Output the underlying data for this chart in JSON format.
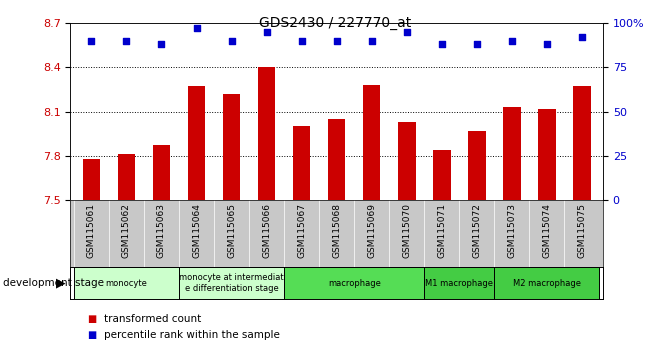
{
  "title": "GDS2430 / 227770_at",
  "samples": [
    "GSM115061",
    "GSM115062",
    "GSM115063",
    "GSM115064",
    "GSM115065",
    "GSM115066",
    "GSM115067",
    "GSM115068",
    "GSM115069",
    "GSM115070",
    "GSM115071",
    "GSM115072",
    "GSM115073",
    "GSM115074",
    "GSM115075"
  ],
  "bar_values": [
    7.78,
    7.81,
    7.87,
    8.27,
    8.22,
    8.4,
    8.0,
    8.05,
    8.28,
    8.03,
    7.84,
    7.97,
    8.13,
    8.12,
    8.27
  ],
  "percentile_values": [
    90,
    90,
    88,
    97,
    90,
    95,
    90,
    90,
    90,
    95,
    88,
    88,
    90,
    88,
    92
  ],
  "ylim_left": [
    7.5,
    8.7
  ],
  "ylim_right": [
    0,
    100
  ],
  "yticks_left": [
    7.5,
    7.8,
    8.1,
    8.4,
    8.7
  ],
  "yticks_right": [
    0,
    25,
    50,
    75,
    100
  ],
  "ytick_labels_right": [
    "0",
    "25",
    "50",
    "75",
    "100%"
  ],
  "bar_color": "#cc0000",
  "percentile_color": "#0000cc",
  "groups": [
    {
      "label": "monocyte",
      "start": 0,
      "end": 2,
      "color": "#ccffcc"
    },
    {
      "label": "monocyte at intermediat\ne differentiation stage",
      "start": 3,
      "end": 5,
      "color": "#ccffcc"
    },
    {
      "label": "macrophage",
      "start": 6,
      "end": 9,
      "color": "#55dd55"
    },
    {
      "label": "M1 macrophage",
      "start": 10,
      "end": 11,
      "color": "#44cc44"
    },
    {
      "label": "M2 macrophage",
      "start": 12,
      "end": 14,
      "color": "#44cc44"
    }
  ],
  "xlabel_stage": "development stage",
  "legend_bar_label": "transformed count",
  "legend_pct_label": "percentile rank within the sample",
  "xtick_bg_color": "#c8c8c8",
  "plot_bg_color": "#ffffff"
}
